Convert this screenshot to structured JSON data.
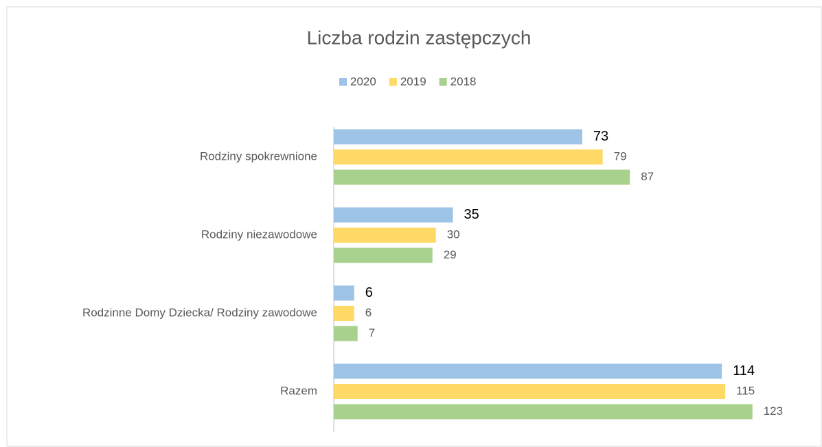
{
  "chart_data": {
    "type": "bar",
    "orientation": "horizontal",
    "title": "Liczba rodzin zastępczych",
    "categories": [
      "Rodziny spokrewnione",
      "Rodziny niezawodowe",
      "Rodzinne Domy Dziecka/ Rodziny zawodowe",
      "Razem"
    ],
    "series": [
      {
        "name": "2020",
        "color": "#9dc3e6",
        "values": [
          73,
          35,
          6,
          114
        ]
      },
      {
        "name": "2019",
        "color": "#ffd966",
        "values": [
          79,
          30,
          6,
          115
        ]
      },
      {
        "name": "2018",
        "color": "#a9d18e",
        "values": [
          87,
          29,
          7,
          123
        ]
      }
    ],
    "xlim": [
      0,
      140
    ],
    "legend": "top"
  }
}
